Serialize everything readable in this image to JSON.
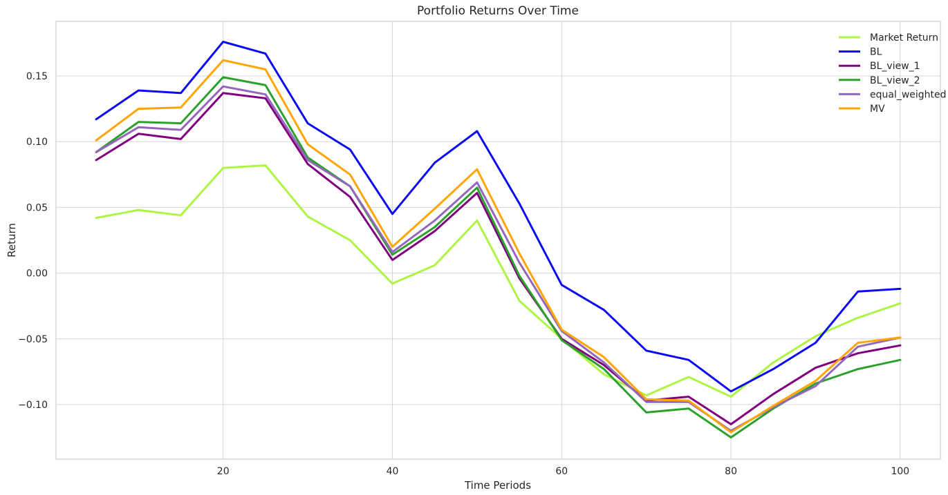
{
  "chart_data": {
    "type": "line",
    "title": "Portfolio Returns Over Time",
    "xlabel": "Time Periods",
    "ylabel": "Return",
    "xlim": [
      0.25,
      104.75
    ],
    "ylim": [
      -0.1415,
      0.1915
    ],
    "xticks": [
      20,
      40,
      60,
      80,
      100
    ],
    "xtick_labels": [
      "20",
      "40",
      "60",
      "80",
      "100"
    ],
    "yticks": [
      -0.1,
      -0.05,
      0.0,
      0.05,
      0.1,
      0.15
    ],
    "ytick_labels": [
      "−0.10",
      "−0.05",
      "0.00",
      "0.05",
      "0.10",
      "0.15"
    ],
    "grid": true,
    "legend_position": "top-right",
    "x": [
      5,
      10,
      15,
      20,
      25,
      30,
      35,
      40,
      45,
      50,
      55,
      60,
      65,
      70,
      75,
      80,
      85,
      90,
      95,
      100
    ],
    "series": [
      {
        "name": "Market Return",
        "color": "#adf542",
        "values": [
          0.042,
          0.048,
          0.044,
          0.08,
          0.082,
          0.043,
          0.025,
          -0.008,
          0.006,
          0.04,
          -0.021,
          -0.05,
          -0.077,
          -0.093,
          -0.079,
          -0.094,
          -0.068,
          -0.048,
          -0.034,
          -0.023
        ]
      },
      {
        "name": "BL",
        "color": "#0b0bf5",
        "values": [
          0.117,
          0.139,
          0.137,
          0.176,
          0.167,
          0.114,
          0.094,
          0.045,
          0.084,
          0.108,
          0.053,
          -0.009,
          -0.028,
          -0.059,
          -0.066,
          -0.09,
          -0.073,
          -0.053,
          -0.014,
          -0.012
        ]
      },
      {
        "name": "BL_view_1",
        "color": "#800080",
        "values": [
          0.086,
          0.106,
          0.102,
          0.137,
          0.133,
          0.083,
          0.058,
          0.01,
          0.032,
          0.061,
          -0.004,
          -0.05,
          -0.07,
          -0.097,
          -0.094,
          -0.115,
          -0.092,
          -0.072,
          -0.061,
          -0.055
        ]
      },
      {
        "name": "BL_view_2",
        "color": "#2ca02c",
        "values": [
          0.092,
          0.115,
          0.114,
          0.149,
          0.143,
          0.088,
          0.066,
          0.014,
          0.035,
          0.065,
          -0.002,
          -0.051,
          -0.073,
          -0.106,
          -0.103,
          -0.125,
          -0.103,
          -0.084,
          -0.073,
          -0.066
        ]
      },
      {
        "name": "equal_weighted",
        "color": "#9467bd",
        "values": [
          0.092,
          0.111,
          0.109,
          0.142,
          0.136,
          0.086,
          0.066,
          0.016,
          0.04,
          0.069,
          0.008,
          -0.044,
          -0.068,
          -0.098,
          -0.098,
          -0.12,
          -0.102,
          -0.086,
          -0.056,
          -0.049
        ]
      },
      {
        "name": "MV",
        "color": "#ffa500",
        "values": [
          0.101,
          0.125,
          0.126,
          0.162,
          0.155,
          0.098,
          0.075,
          0.02,
          0.049,
          0.079,
          0.015,
          -0.043,
          -0.064,
          -0.096,
          -0.097,
          -0.121,
          -0.101,
          -0.082,
          -0.053,
          -0.049
        ]
      }
    ]
  }
}
